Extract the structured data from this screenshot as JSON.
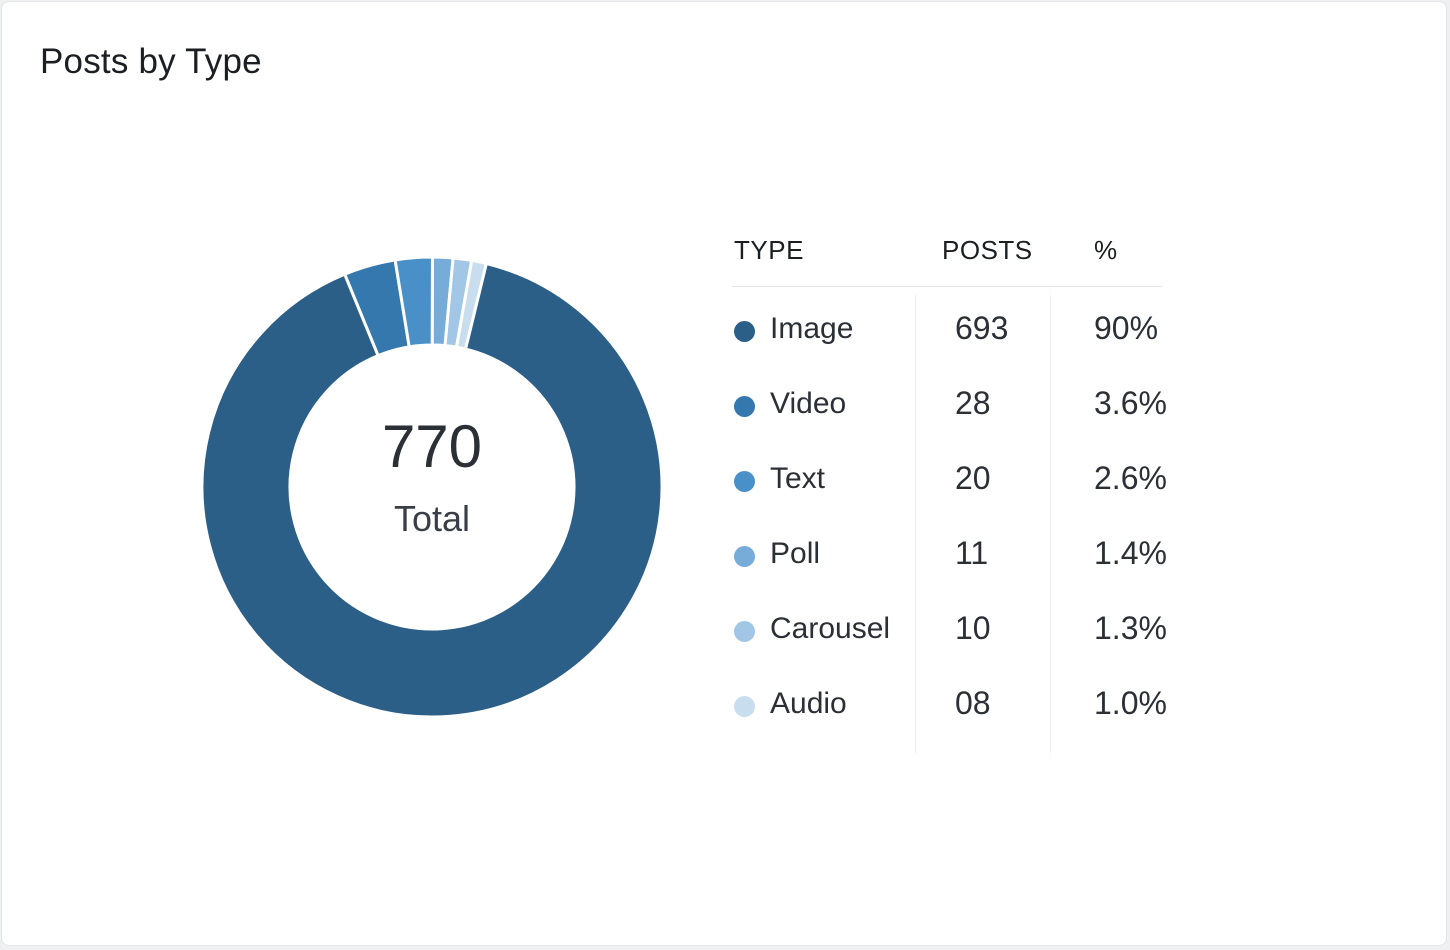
{
  "card": {
    "title": "Posts by Type"
  },
  "center": {
    "total": "770",
    "label": "Total"
  },
  "table": {
    "headers": {
      "type": "TYPE",
      "posts": "POSTS",
      "pct": "%"
    },
    "rows": [
      {
        "type": "Image",
        "posts": "693",
        "pct": "90%",
        "color": "#2c5f87"
      },
      {
        "type": "Video",
        "posts": "28",
        "pct": "3.6%",
        "color": "#3478ad"
      },
      {
        "type": "Text",
        "posts": "20",
        "pct": "2.6%",
        "color": "#4a90c8"
      },
      {
        "type": "Poll",
        "posts": "11",
        "pct": "1.4%",
        "color": "#77acd8"
      },
      {
        "type": "Carousel",
        "posts": "10",
        "pct": "1.3%",
        "color": "#a2c6e5"
      },
      {
        "type": "Audio",
        "posts": "08",
        "pct": "1.0%",
        "color": "#c8dded"
      }
    ]
  },
  "chart_data": {
    "type": "pie",
    "categories": [
      "Image",
      "Video",
      "Text",
      "Poll",
      "Carousel",
      "Audio"
    ],
    "values": [
      693,
      28,
      20,
      11,
      10,
      8
    ],
    "colors": [
      "#2c5f87",
      "#3478ad",
      "#4a90c8",
      "#77acd8",
      "#a2c6e5",
      "#c8dded"
    ],
    "title": "Posts by Type"
  }
}
